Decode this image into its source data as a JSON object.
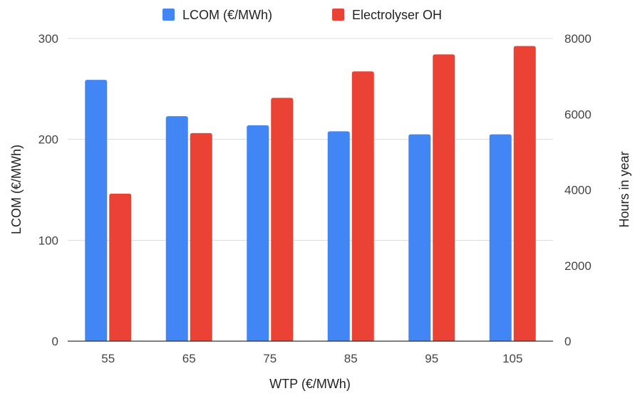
{
  "chart_data": {
    "type": "bar",
    "categories": [
      "55",
      "65",
      "75",
      "85",
      "95",
      "105"
    ],
    "series": [
      {
        "name": "LCOM (€/MWh)",
        "axis": "left",
        "color": "#4285f4",
        "values": [
          259,
          223,
          214,
          208,
          205,
          205
        ]
      },
      {
        "name": "Electrolyser OH",
        "axis": "right",
        "color": "#ea4335",
        "values": [
          3900,
          5500,
          6430,
          7130,
          7580,
          7800
        ]
      }
    ],
    "xlabel": "WTP (€/MWh)",
    "ylabel": "LCOM (€/MWh)",
    "y2label": "Hours in year",
    "ylim": [
      0,
      300
    ],
    "y2lim": [
      0,
      8000
    ],
    "yticks": [
      "0",
      "100",
      "200",
      "300"
    ],
    "y2ticks": [
      "0",
      "2000",
      "4000",
      "6000",
      "8000"
    ],
    "grid": true,
    "legend_position": "top"
  }
}
